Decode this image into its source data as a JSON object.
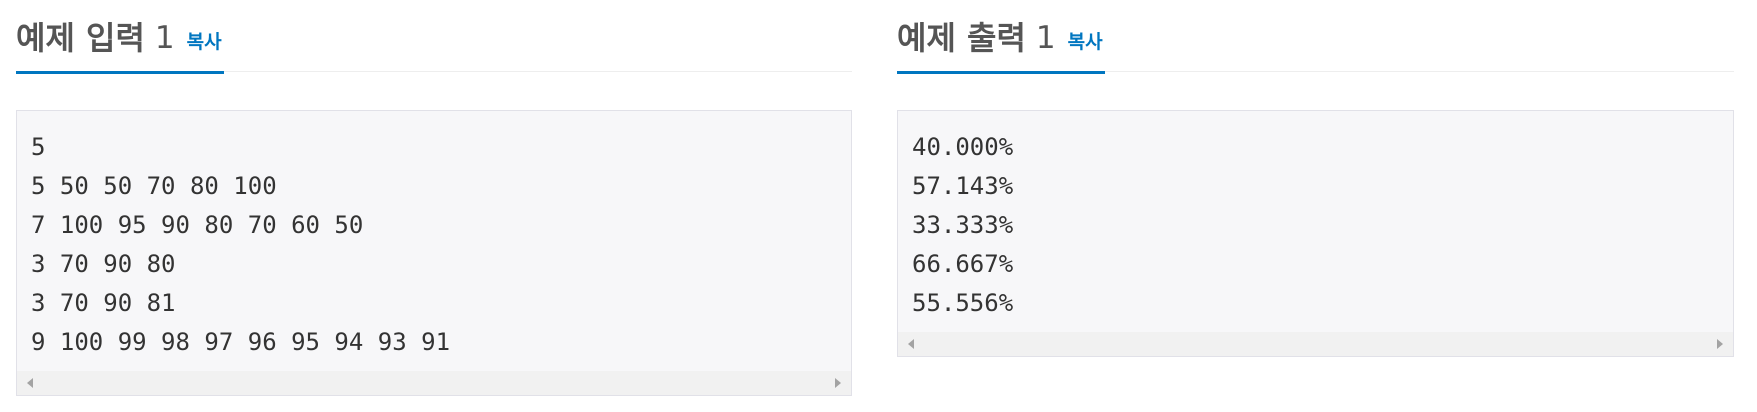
{
  "sample_input": {
    "title": "예제 입력",
    "number": "1",
    "copy_label": "복사",
    "lines": [
      "5",
      "5 50 50 70 80 100",
      "7 100 95 90 80 70 60 50",
      "3 70 90 80",
      "3 70 90 81",
      "9 100 99 98 97 96 95 94 93 91"
    ]
  },
  "sample_output": {
    "title": "예제 출력",
    "number": "1",
    "copy_label": "복사",
    "lines": [
      "40.000%",
      "57.143%",
      "33.333%",
      "66.667%",
      "55.556%"
    ]
  },
  "colors": {
    "accent": "#0076c0",
    "heading": "#555555",
    "code_bg": "#f7f7f9"
  }
}
